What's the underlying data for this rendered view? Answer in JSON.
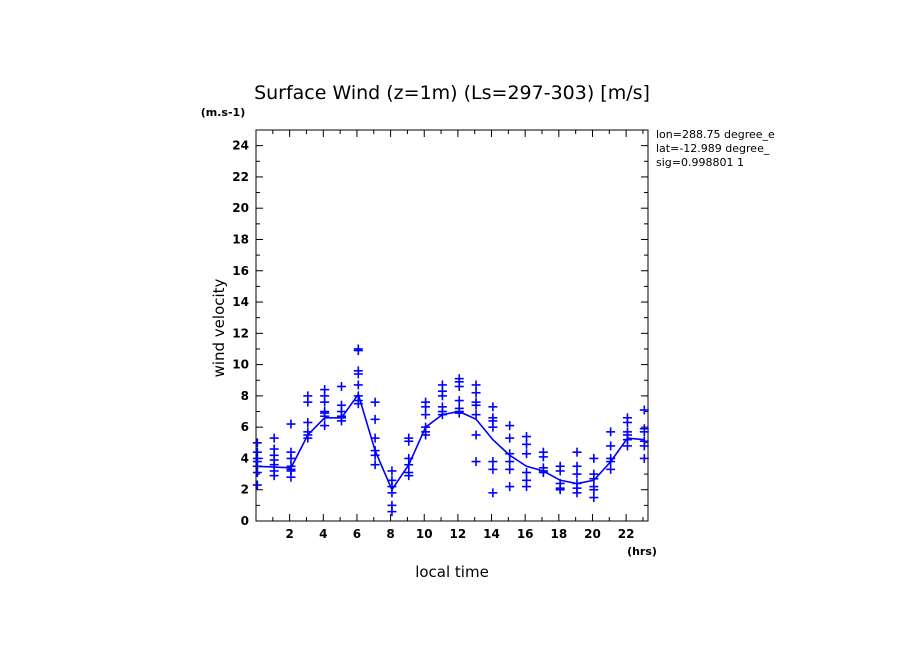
{
  "chart_data": {
    "type": "scatter",
    "title": "Surface Wind (z=1m) (Ls=297-303) [m/s]",
    "y_unit": "(m.s-1)",
    "x_unit": "(hrs)",
    "xlabel": "local time",
    "ylabel": "wind velocity",
    "xlim": [
      0,
      23.3
    ],
    "ylim": [
      0,
      25
    ],
    "x_ticks": [
      2,
      4,
      6,
      8,
      10,
      12,
      14,
      16,
      18,
      20,
      22
    ],
    "y_ticks": [
      0,
      2,
      4,
      6,
      8,
      10,
      12,
      14,
      16,
      18,
      20,
      22,
      24
    ],
    "color": "#0000ff",
    "info_lines": [
      "lon=288.75 degree_e",
      "lat=-12.989 degree_",
      "sig=0.998801 1"
    ],
    "mean_line": {
      "x": [
        0.08,
        2.08,
        3.08,
        4.08,
        5.08,
        6.08,
        7.08,
        8.08,
        9.08,
        10.08,
        11.08,
        12.08,
        13.08,
        14.08,
        15.08,
        16.08,
        17.08,
        18.08,
        19.08,
        20.08,
        21.08,
        22.08,
        23.08
      ],
      "y": [
        3.5,
        3.4,
        5.5,
        6.6,
        6.6,
        8.1,
        4.5,
        2.0,
        3.6,
        6.0,
        6.8,
        7.0,
        6.5,
        5.2,
        4.2,
        3.5,
        3.2,
        2.6,
        2.4,
        2.6,
        3.8,
        5.3,
        5.2
      ]
    },
    "series": [
      {
        "x": [
          0.08,
          0.08,
          0.08,
          0.08,
          0.08,
          0.08,
          0.08,
          1.08,
          1.08,
          1.08,
          1.08,
          1.08,
          1.08,
          1.08,
          2.08,
          2.08,
          2.08,
          2.08,
          2.08,
          2.08,
          2.08,
          3.08,
          3.08,
          3.08,
          3.08,
          3.08,
          3.08,
          4.08,
          4.08,
          4.08,
          4.08,
          4.08,
          4.08,
          4.08,
          5.08,
          5.08,
          5.08,
          5.08,
          5.08,
          5.08,
          6.08,
          6.08,
          6.08,
          6.08,
          6.08,
          6.08,
          6.08,
          6.08,
          7.08,
          7.08,
          7.08,
          7.08,
          7.08,
          7.08,
          8.08,
          8.08,
          8.08,
          8.08,
          8.08,
          8.08,
          9.08,
          9.08,
          9.08,
          9.08,
          9.08,
          9.08,
          10.08,
          10.08,
          10.08,
          10.08,
          10.08,
          10.08,
          11.08,
          11.08,
          11.08,
          11.08,
          11.08,
          11.08,
          12.08,
          12.08,
          12.08,
          12.08,
          12.08,
          12.08,
          12.08,
          13.08,
          13.08,
          13.08,
          13.08,
          13.08,
          13.08,
          13.08,
          14.08,
          14.08,
          14.08,
          14.08,
          14.08,
          14.08,
          14.08,
          15.08,
          15.08,
          15.08,
          15.08,
          15.08,
          15.08,
          16.08,
          16.08,
          16.08,
          16.08,
          16.08,
          16.08,
          17.08,
          17.08,
          17.08,
          17.08,
          17.08,
          18.08,
          18.08,
          18.08,
          18.08,
          18.08,
          19.08,
          19.08,
          19.08,
          19.08,
          19.08,
          19.08,
          20.08,
          20.08,
          20.08,
          20.08,
          20.08,
          20.08,
          21.08,
          21.08,
          21.08,
          21.08,
          21.08,
          22.08,
          22.08,
          22.08,
          22.08,
          22.08,
          22.08,
          23.08,
          23.08,
          23.08,
          23.08,
          23.08,
          23.08
        ],
        "y": [
          5.0,
          4.4,
          4.0,
          3.5,
          3.1,
          2.3,
          3.8,
          5.3,
          4.6,
          4.2,
          3.6,
          3.2,
          2.9,
          3.9,
          6.2,
          4.4,
          4.0,
          3.5,
          3.2,
          2.8,
          3.3,
          8.0,
          7.6,
          6.3,
          5.7,
          5.3,
          5.5,
          8.4,
          8.0,
          7.6,
          7.0,
          6.7,
          6.1,
          6.9,
          8.6,
          7.4,
          7.0,
          6.7,
          6.4,
          6.6,
          11.0,
          10.9,
          9.6,
          9.4,
          8.7,
          7.7,
          7.5,
          8.0,
          7.6,
          6.5,
          5.3,
          4.5,
          4.2,
          3.6,
          3.2,
          2.6,
          2.2,
          1.8,
          1.0,
          0.6,
          5.3,
          5.1,
          4.0,
          3.6,
          3.1,
          2.9,
          7.6,
          7.3,
          6.8,
          6.0,
          5.7,
          5.5,
          8.7,
          8.3,
          8.0,
          7.3,
          7.0,
          6.8,
          9.1,
          8.9,
          8.6,
          7.7,
          7.2,
          7.0,
          6.9,
          8.7,
          8.2,
          7.6,
          7.4,
          6.8,
          5.5,
          3.8,
          7.3,
          6.6,
          6.4,
          6.0,
          3.8,
          3.3,
          1.8,
          6.1,
          5.3,
          4.3,
          3.8,
          3.3,
          2.2,
          5.4,
          4.9,
          4.3,
          3.1,
          2.6,
          2.2,
          4.4,
          4.1,
          3.4,
          3.1,
          3.2,
          3.5,
          3.2,
          2.4,
          2.1,
          2.0,
          4.4,
          3.5,
          3.0,
          2.4,
          2.1,
          1.8,
          4.0,
          3.0,
          2.7,
          2.2,
          2.0,
          1.5,
          5.7,
          4.8,
          4.0,
          3.8,
          3.3,
          6.6,
          6.3,
          5.7,
          5.5,
          5.2,
          4.8,
          7.1,
          5.9,
          5.7,
          5.1,
          4.8,
          4.0
        ]
      }
    ]
  }
}
